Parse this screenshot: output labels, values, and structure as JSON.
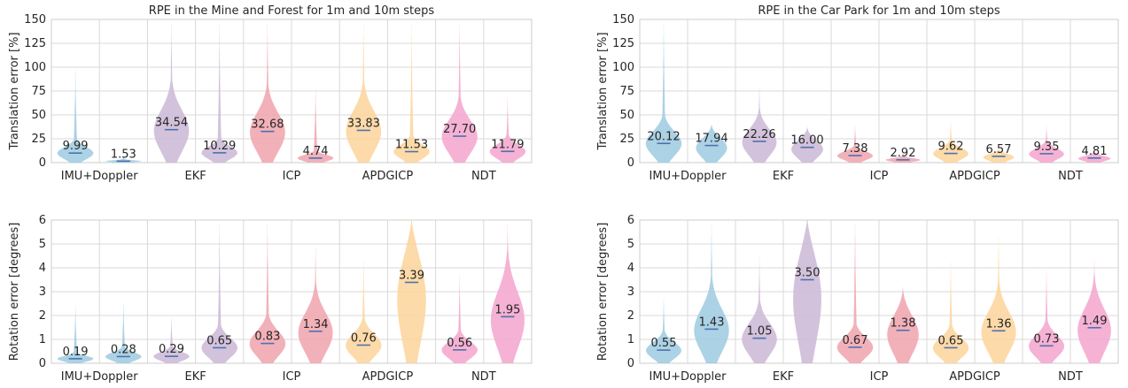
{
  "colors": {
    "imu": "#9ecae1",
    "ekf": "#cbb7d6",
    "icp": "#f0a3ad",
    "apdgicp": "#fdd49a",
    "ndt": "#f3a5cc",
    "median_line": "#4c72b0",
    "grid": "#d9d9d9",
    "axis_frame": "#cccccc"
  },
  "chart_data": [
    {
      "type": "violin",
      "title": "RPE in the Mine and Forest for 1m and 10m steps",
      "ylabel": "Translation error [%]",
      "ylim": [
        0,
        150
      ],
      "yticks": [
        "0",
        "25",
        "50",
        "75",
        "100",
        "125",
        "150"
      ],
      "categories": [
        "IMU+Doppler",
        "EKF",
        "ICP",
        "APDGICP",
        "NDT"
      ],
      "series": [
        {
          "method": "imu",
          "step": "1m",
          "median": 9.99,
          "label": "9.99",
          "max": 100
        },
        {
          "method": "imu",
          "step": "10m",
          "median": 1.53,
          "label": "1.53",
          "max": 8
        },
        {
          "method": "ekf",
          "step": "1m",
          "median": 34.54,
          "label": "34.54",
          "max": 150
        },
        {
          "method": "ekf",
          "step": "10m",
          "median": 10.29,
          "label": "10.29",
          "max": 150
        },
        {
          "method": "icp",
          "step": "1m",
          "median": 32.68,
          "label": "32.68",
          "max": 150
        },
        {
          "method": "icp",
          "step": "10m",
          "median": 4.74,
          "label": "4.74",
          "max": 80
        },
        {
          "method": "apdgicp",
          "step": "1m",
          "median": 33.83,
          "label": "33.83",
          "max": 150
        },
        {
          "method": "apdgicp",
          "step": "10m",
          "median": 11.53,
          "label": "11.53",
          "max": 150
        },
        {
          "method": "ndt",
          "step": "1m",
          "median": 27.7,
          "label": "27.70",
          "max": 150
        },
        {
          "method": "ndt",
          "step": "10m",
          "median": 11.79,
          "label": "11.79",
          "max": 70
        }
      ]
    },
    {
      "type": "violin",
      "title": "RPE in the Car Park for 1m and 10m steps",
      "ylabel": "Translation error [%]",
      "ylim": [
        0,
        150
      ],
      "yticks": [
        "0",
        "25",
        "50",
        "75",
        "100",
        "125",
        "150"
      ],
      "categories": [
        "IMU+Doppler",
        "EKF",
        "ICP",
        "APDGICP",
        "NDT"
      ],
      "series": [
        {
          "method": "imu",
          "step": "1m",
          "median": 20.12,
          "label": "20.12",
          "max": 150
        },
        {
          "method": "imu",
          "step": "10m",
          "median": 17.94,
          "label": "17.94",
          "max": 40
        },
        {
          "method": "ekf",
          "step": "1m",
          "median": 22.26,
          "label": "22.26",
          "max": 82
        },
        {
          "method": "ekf",
          "step": "10m",
          "median": 16.0,
          "label": "16.00",
          "max": 38
        },
        {
          "method": "icp",
          "step": "1m",
          "median": 7.38,
          "label": "7.38",
          "max": 40
        },
        {
          "method": "icp",
          "step": "10m",
          "median": 2.92,
          "label": "2.92",
          "max": 12
        },
        {
          "method": "apdgicp",
          "step": "1m",
          "median": 9.62,
          "label": "9.62",
          "max": 45
        },
        {
          "method": "apdgicp",
          "step": "10m",
          "median": 6.57,
          "label": "6.57",
          "max": 14
        },
        {
          "method": "ndt",
          "step": "1m",
          "median": 9.35,
          "label": "9.35",
          "max": 40
        },
        {
          "method": "ndt",
          "step": "10m",
          "median": 4.81,
          "label": "4.81",
          "max": 12
        }
      ]
    },
    {
      "type": "violin",
      "title": "",
      "ylabel": "Rotation error [degrees]",
      "ylim": [
        0,
        6
      ],
      "yticks": [
        "0",
        "1",
        "2",
        "3",
        "4",
        "5",
        "6"
      ],
      "categories": [
        "IMU+Doppler",
        "EKF",
        "ICP",
        "APDGICP",
        "NDT"
      ],
      "series": [
        {
          "method": "imu",
          "step": "1m",
          "median": 0.19,
          "label": "0.19",
          "max": 2.5
        },
        {
          "method": "imu",
          "step": "10m",
          "median": 0.28,
          "label": "0.28",
          "max": 2.6
        },
        {
          "method": "ekf",
          "step": "1m",
          "median": 0.29,
          "label": "0.29",
          "max": 2.0
        },
        {
          "method": "ekf",
          "step": "10m",
          "median": 0.65,
          "label": "0.65",
          "max": 6.0
        },
        {
          "method": "icp",
          "step": "1m",
          "median": 0.83,
          "label": "0.83",
          "max": 6.0
        },
        {
          "method": "icp",
          "step": "10m",
          "median": 1.34,
          "label": "1.34",
          "max": 5.0
        },
        {
          "method": "apdgicp",
          "step": "1m",
          "median": 0.76,
          "label": "0.76",
          "max": 4.5
        },
        {
          "method": "apdgicp",
          "step": "10m",
          "median": 3.39,
          "label": "3.39",
          "max": 6.0
        },
        {
          "method": "ndt",
          "step": "1m",
          "median": 0.56,
          "label": "0.56",
          "max": 3.8
        },
        {
          "method": "ndt",
          "step": "10m",
          "median": 1.95,
          "label": "1.95",
          "max": 6.0
        }
      ]
    },
    {
      "type": "violin",
      "title": "",
      "ylabel": "Rotation error [degrees]",
      "ylim": [
        0,
        6
      ],
      "yticks": [
        "0",
        "1",
        "2",
        "3",
        "4",
        "5",
        "6"
      ],
      "categories": [
        "IMU+Doppler",
        "EKF",
        "ICP",
        "APDGICP",
        "NDT"
      ],
      "series": [
        {
          "method": "imu",
          "step": "1m",
          "median": 0.55,
          "label": "0.55",
          "max": 2.8
        },
        {
          "method": "imu",
          "step": "10m",
          "median": 1.43,
          "label": "1.43",
          "max": 6.0
        },
        {
          "method": "ekf",
          "step": "1m",
          "median": 1.05,
          "label": "1.05",
          "max": 4.6
        },
        {
          "method": "ekf",
          "step": "10m",
          "median": 3.5,
          "label": "3.50",
          "max": 6.0
        },
        {
          "method": "icp",
          "step": "1m",
          "median": 0.67,
          "label": "0.67",
          "max": 6.0
        },
        {
          "method": "icp",
          "step": "10m",
          "median": 1.38,
          "label": "1.38",
          "max": 3.2
        },
        {
          "method": "apdgicp",
          "step": "1m",
          "median": 0.65,
          "label": "0.65",
          "max": 4.4
        },
        {
          "method": "apdgicp",
          "step": "10m",
          "median": 1.36,
          "label": "1.36",
          "max": 5.5
        },
        {
          "method": "ndt",
          "step": "1m",
          "median": 0.73,
          "label": "0.73",
          "max": 4.0
        },
        {
          "method": "ndt",
          "step": "10m",
          "median": 1.49,
          "label": "1.49",
          "max": 4.5
        }
      ]
    }
  ]
}
